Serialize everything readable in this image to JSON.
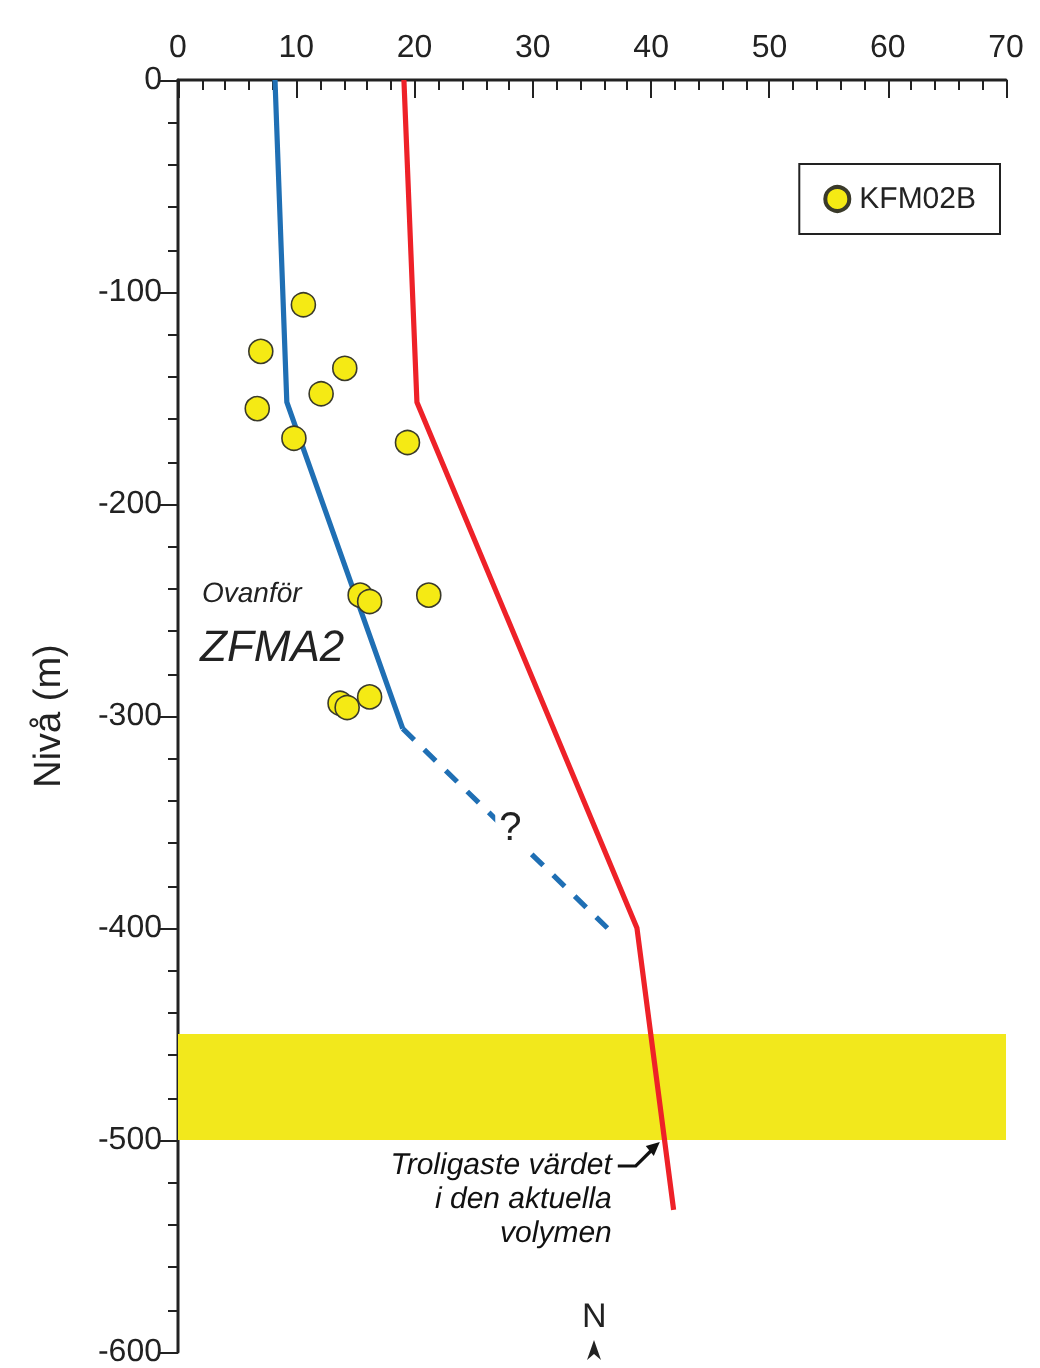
{
  "chart_data": {
    "type": "line",
    "ylabel": "Nivå (m)",
    "xlim": [
      0,
      70
    ],
    "xticks": [
      0,
      10,
      20,
      30,
      40,
      50,
      60,
      70
    ],
    "ylim": [
      -600,
      0
    ],
    "yticks": [
      -600,
      -500,
      -400,
      -300,
      -200,
      -100,
      0
    ],
    "grid": false,
    "legend": "top right",
    "marker": "none",
    "line_style": "solid",
    "series": [
      {
        "color": "#1f6fb4",
        "x": [
          8.2,
          9.2,
          19.0
        ],
        "values": [
          0,
          -152,
          -306
        ]
      },
      {
        "color": "#1f6fb4",
        "line_style": "dashed",
        "x": [
          19.0,
          36.3
        ],
        "values": [
          -306,
          -400
        ]
      },
      {
        "color": "#ee2128",
        "x": [
          19.1,
          20.2,
          38.8,
          41.9
        ],
        "values": [
          0,
          -152,
          -400,
          -533
        ]
      },
      {
        "type": "scatter",
        "name": "KFM02B",
        "color": "#f5ea14",
        "marker": "circle",
        "x": [
          10.6,
          7.0,
          14.1,
          12.1,
          6.7,
          9.8,
          19.4,
          15.4,
          16.2,
          21.2,
          13.7,
          14.3,
          16.2
        ],
        "values": [
          -106,
          -128,
          -136,
          -148,
          -155,
          -169,
          -171,
          -243,
          -246,
          -243,
          -294,
          -296,
          -291
        ]
      }
    ],
    "bands": [
      {
        "axis": "y",
        "from": -500,
        "to": -450,
        "color": "#f2e81c"
      }
    ],
    "annotations": [
      "Ovanför",
      "ZFMA2",
      {
        "text": "?",
        "x": 28.1,
        "y": -353
      },
      {
        "text": "Troligaste värdet\ni den aktuella\nvolymen",
        "x": 40.9,
        "y": -500
      },
      "N"
    ]
  }
}
